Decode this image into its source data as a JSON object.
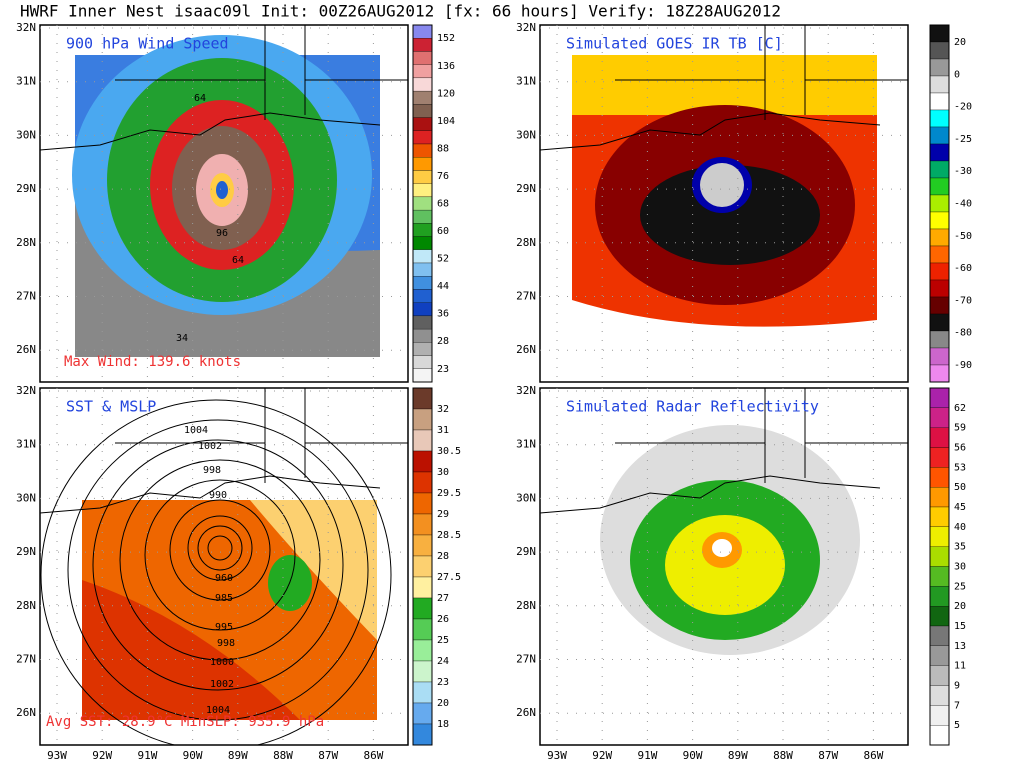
{
  "title": "HWRF Inner Nest isaac09l Init: 00Z26AUG2012 [fx: 66 hours] Verify: 18Z28AUG2012",
  "lat_labels": [
    "32N",
    "31N",
    "30N",
    "29N",
    "28N",
    "27N",
    "26N"
  ],
  "lon_labels": [
    "93W",
    "92W",
    "91W",
    "90W",
    "89W",
    "88W",
    "87W",
    "86W"
  ],
  "panels": [
    {
      "title": "900 hPa Wind Speed",
      "annotation": "Max Wind: 139.6 knots",
      "contour_labels": [
        "64",
        "96",
        "64",
        "34"
      ],
      "colorbar": {
        "labels": [
          "152",
          "136",
          "120",
          "104",
          "88",
          "76",
          "68",
          "60",
          "52",
          "44",
          "36",
          "28",
          "23"
        ],
        "colors": [
          "#8888ee",
          "#cc2233",
          "#e07070",
          "#f0a0a0",
          "#f8d8d8",
          "#a08070",
          "#806050",
          "#aa1111",
          "#dd2222",
          "#ee5500",
          "#ff9900",
          "#ffcc44",
          "#fff080",
          "#a0e080",
          "#60c060",
          "#20a020",
          "#008800",
          "#c0e8f8",
          "#80c0f0",
          "#4090e0",
          "#2060d0",
          "#1040c0",
          "#606060",
          "#909090",
          "#b0b0b0",
          "#d8d8d8",
          "#f4f4f4"
        ]
      }
    },
    {
      "title": "Simulated GOES IR TB [C]",
      "colorbar": {
        "labels": [
          "20",
          "0",
          "-20",
          "-25",
          "-30",
          "-40",
          "-50",
          "-60",
          "-70",
          "-80",
          "-90"
        ],
        "colors": [
          "#111111",
          "#555555",
          "#999999",
          "#dddddd",
          "#ffffff",
          "#00ffff",
          "#0088cc",
          "#0000aa",
          "#00aa66",
          "#22cc22",
          "#aaee00",
          "#ffff00",
          "#ffaa00",
          "#ff6600",
          "#ee2200",
          "#bb0000",
          "#660000",
          "#111111",
          "#888888",
          "#cc66cc",
          "#ee88ee"
        ]
      }
    },
    {
      "title": "SST & MSLP",
      "annotation": "Avg SST: 28.9°C  MinSLP: 935.9 hPa",
      "contour_labels": [
        "1004",
        "1002",
        "998",
        "990",
        "960",
        "985",
        "995",
        "998",
        "1000",
        "1002",
        "1004"
      ],
      "colorbar": {
        "labels": [
          "32",
          "31",
          "30.5",
          "30",
          "29.5",
          "29",
          "28.5",
          "28",
          "27.5",
          "27",
          "26",
          "25",
          "24",
          "23",
          "20",
          "18"
        ],
        "colors": [
          "#6b3a2a",
          "#c8a080",
          "#e8c8b8",
          "#bb1100",
          "#dd3300",
          "#ee6600",
          "#f39020",
          "#f8b040",
          "#fcd070",
          "#fff0a0",
          "#22aa22",
          "#55cc55",
          "#99ee99",
          "#ccf4cc",
          "#aaddf4",
          "#66aaee",
          "#3388dd"
        ]
      }
    },
    {
      "title": "Simulated Radar Reflectivity",
      "colorbar": {
        "labels": [
          "62",
          "59",
          "56",
          "53",
          "50",
          "45",
          "40",
          "35",
          "30",
          "25",
          "20",
          "15",
          "13",
          "11",
          "9",
          "7",
          "5"
        ],
        "colors": [
          "#aa22aa",
          "#cc2288",
          "#dd1144",
          "#ee2222",
          "#ff5500",
          "#ff9900",
          "#ffcc00",
          "#eeee00",
          "#aadd00",
          "#55bb22",
          "#229922",
          "#116611",
          "#777777",
          "#999999",
          "#bbbbbb",
          "#dddddd",
          "#f0f0f0",
          "#ffffff"
        ]
      }
    }
  ]
}
